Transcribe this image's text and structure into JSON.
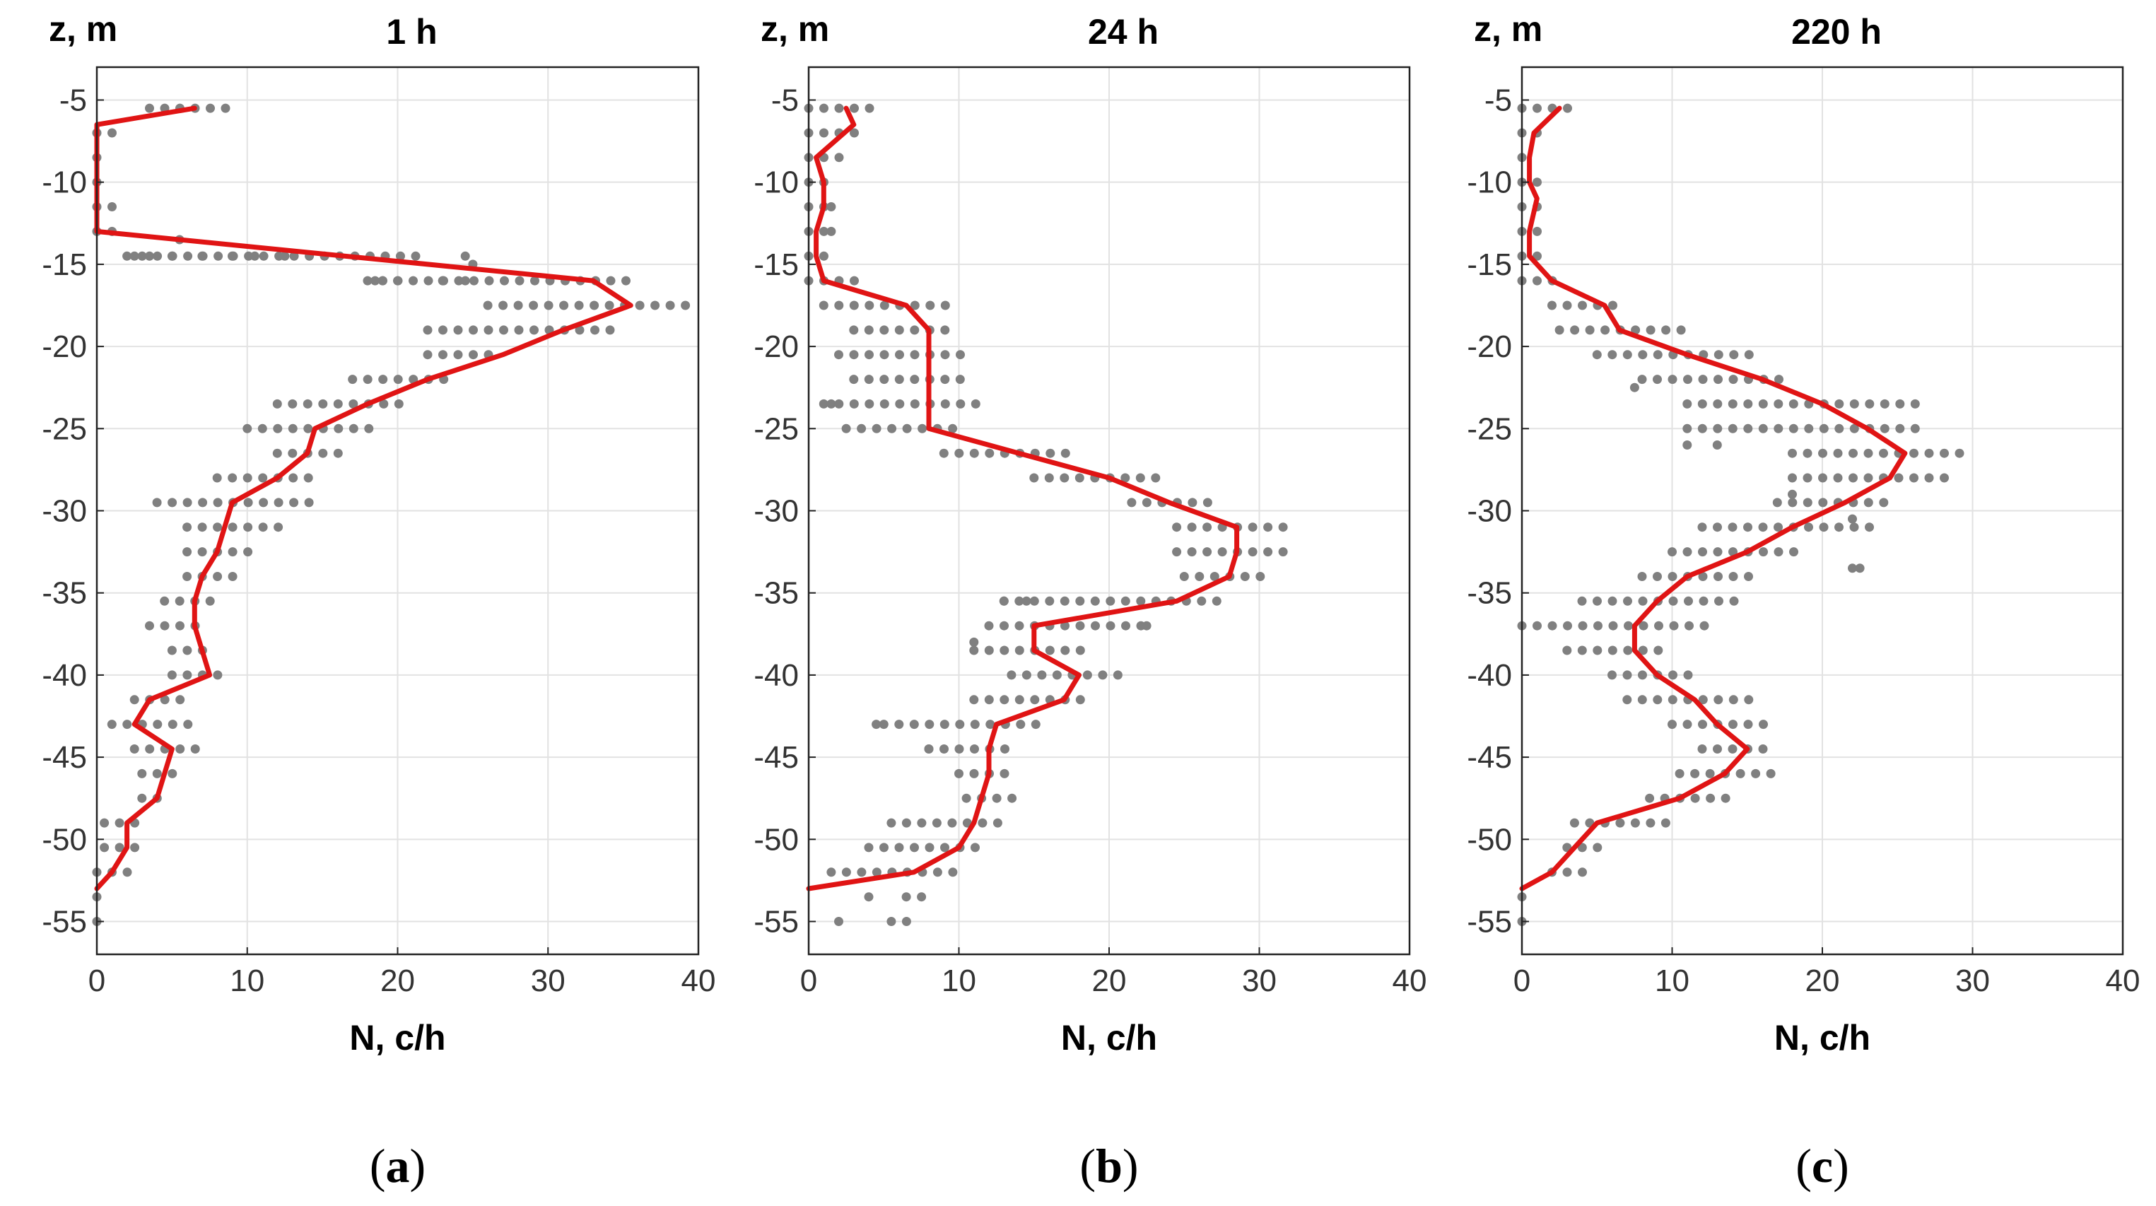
{
  "colors": {
    "points": "#808080",
    "line": "#e01414",
    "grid": "#e2e2e2",
    "axis": "#222222"
  },
  "chart_data": [
    {
      "type": "scatter",
      "panel_prefix": "(",
      "panel_letter": "a",
      "panel_suffix": ")",
      "title": "1 h",
      "ylabel": "z, m",
      "xlabel": "N, c/h",
      "xlim": [
        0,
        40
      ],
      "ylim": [
        -57,
        -3
      ],
      "xticks": [
        0,
        10,
        20,
        30,
        40
      ],
      "yticks": [
        -5,
        -10,
        -15,
        -20,
        -25,
        -30,
        -35,
        -40,
        -45,
        -50,
        -55
      ],
      "grid": true,
      "points": [
        [
          [
            -5.5,
            3.5,
            9.5
          ],
          [
            -7,
            0,
            2
          ],
          [
            -8.5,
            0,
            0.5
          ],
          [
            -10,
            0,
            0.5
          ],
          [
            -11.5,
            0,
            1.5
          ],
          [
            -13,
            0,
            2
          ],
          [
            -14.5,
            2,
            22
          ],
          [
            -16,
            18,
            36
          ],
          [
            -17.5,
            26,
            40
          ],
          [
            -19,
            22,
            35
          ],
          [
            -20.5,
            22,
            27
          ],
          [
            -22,
            17,
            24
          ],
          [
            -23.5,
            12,
            21
          ],
          [
            -25,
            10,
            19
          ],
          [
            -26.5,
            12,
            17
          ],
          [
            -28,
            8,
            15
          ],
          [
            -29.5,
            4,
            15
          ],
          [
            -31,
            6,
            12.5
          ],
          [
            -32.5,
            6,
            11
          ],
          [
            -34,
            6,
            10
          ],
          [
            -35.5,
            4.5,
            8
          ],
          [
            -37,
            3.5,
            7
          ],
          [
            -38.5,
            5,
            8
          ],
          [
            -40,
            5,
            9
          ],
          [
            -41.5,
            2.5,
            6
          ],
          [
            -43,
            1,
            7
          ],
          [
            -44.5,
            2.5,
            7
          ],
          [
            -46,
            3,
            6
          ],
          [
            -47.5,
            3,
            5
          ],
          [
            -49,
            0.5,
            3
          ],
          [
            -50.5,
            0.5,
            3
          ],
          [
            -52,
            0,
            2.5
          ],
          [
            -53.5,
            0,
            0.3
          ],
          [
            -55,
            0,
            0.3
          ]
        ],
        [
          [
            -13.5,
            5.5
          ],
          [
            -16,
            19
          ],
          [
            -16,
            23
          ],
          [
            -15,
            25
          ],
          [
            -14.5,
            2.5
          ],
          [
            -14.5,
            3.5
          ],
          [
            -14.5,
            5
          ],
          [
            -14.5,
            7
          ],
          [
            -14.5,
            9
          ],
          [
            -14.5,
            10.5
          ],
          [
            -14.5,
            12.5
          ],
          [
            -16,
            18.5
          ],
          [
            -16,
            20
          ],
          [
            -16,
            23
          ],
          [
            -16,
            24.5
          ],
          [
            -14.5,
            24.5
          ]
        ]
      ],
      "line": [
        [
          -5.5,
          6.5
        ],
        [
          -6.5,
          0
        ],
        [
          -11.5,
          0
        ],
        [
          -13,
          0
        ],
        [
          -16,
          33
        ],
        [
          -17.5,
          35.5
        ],
        [
          -19,
          31
        ],
        [
          -20.5,
          27
        ],
        [
          -22,
          22
        ],
        [
          -23.5,
          18
        ],
        [
          -25,
          14.5
        ],
        [
          -26.5,
          14
        ],
        [
          -28,
          12
        ],
        [
          -29.5,
          9
        ],
        [
          -31,
          8.5
        ],
        [
          -32.5,
          8
        ],
        [
          -34,
          7
        ],
        [
          -35.5,
          6.5
        ],
        [
          -37,
          6.5
        ],
        [
          -38.5,
          7
        ],
        [
          -40,
          7.5
        ],
        [
          -41.5,
          3.5
        ],
        [
          -43,
          2.5
        ],
        [
          -44.5,
          5
        ],
        [
          -46,
          4.5
        ],
        [
          -47.5,
          4
        ],
        [
          -49,
          2
        ],
        [
          -50.5,
          2
        ],
        [
          -52,
          1
        ],
        [
          -53,
          0
        ]
      ]
    },
    {
      "type": "scatter",
      "panel_prefix": "(",
      "panel_letter": "b",
      "panel_suffix": ")",
      "title": "24 h",
      "ylabel": "z, m",
      "xlabel": "N, c/h",
      "xlim": [
        0,
        40
      ],
      "ylim": [
        -57,
        -3
      ],
      "xticks": [
        0,
        10,
        20,
        30,
        40
      ],
      "yticks": [
        -5,
        -10,
        -15,
        -20,
        -25,
        -30,
        -35,
        -40,
        -45,
        -50,
        -55
      ],
      "grid": true,
      "points": [
        [
          [
            -5.5,
            0,
            5
          ],
          [
            -7,
            0,
            3.5
          ],
          [
            -8.5,
            0,
            2.5
          ],
          [
            -10,
            0,
            2
          ],
          [
            -11.5,
            0,
            1.5
          ],
          [
            -13,
            0,
            1.5
          ],
          [
            -14.5,
            0,
            2
          ],
          [
            -16,
            0,
            4
          ],
          [
            -17.5,
            1,
            9.5
          ],
          [
            -19,
            3,
            10
          ],
          [
            -20.5,
            2,
            10.5
          ],
          [
            -22,
            3,
            11
          ],
          [
            -23.5,
            1,
            11.5
          ],
          [
            -25,
            2.5,
            10.5
          ],
          [
            -26.5,
            9,
            18
          ],
          [
            -28,
            15,
            24
          ],
          [
            -29.5,
            21.5,
            27
          ],
          [
            -31,
            24.5,
            32
          ],
          [
            -32.5,
            24.5,
            32
          ],
          [
            -34,
            25,
            31
          ],
          [
            -35.5,
            13,
            28
          ],
          [
            -37,
            12,
            23
          ],
          [
            -38.5,
            11,
            18.5
          ],
          [
            -40,
            13.5,
            21
          ],
          [
            -41.5,
            11,
            18.5
          ],
          [
            -43,
            5,
            16
          ],
          [
            -44.5,
            8,
            14
          ],
          [
            -46,
            10,
            14
          ],
          [
            -47.5,
            10.5,
            14
          ],
          [
            -49,
            5.5,
            13
          ],
          [
            -50.5,
            4,
            12
          ],
          [
            -52,
            1.5,
            10.5
          ],
          [
            -53.5,
            6.5,
            8
          ],
          [
            -55,
            5.5,
            7
          ]
        ],
        [
          [
            -11.5,
            1.5
          ],
          [
            -13,
            1.5
          ],
          [
            -23.5,
            1.5
          ],
          [
            -35.5,
            13
          ],
          [
            -38,
            11
          ],
          [
            -35.5,
            14.5
          ],
          [
            -37,
            22.5
          ],
          [
            -43,
            4.5
          ],
          [
            -44.5,
            8
          ],
          [
            -53.5,
            4
          ],
          [
            -55,
            2
          ]
        ]
      ],
      "line": [
        [
          -5.5,
          2.5
        ],
        [
          -6.5,
          3
        ],
        [
          -8.5,
          0.5
        ],
        [
          -10,
          1
        ],
        [
          -11.5,
          1
        ],
        [
          -13,
          0.5
        ],
        [
          -14.5,
          0.5
        ],
        [
          -16,
          1
        ],
        [
          -17.5,
          6.5
        ],
        [
          -19,
          8
        ],
        [
          -20.5,
          8
        ],
        [
          -22,
          8
        ],
        [
          -23.5,
          8
        ],
        [
          -25,
          8
        ],
        [
          -26.5,
          14
        ],
        [
          -28,
          20
        ],
        [
          -29.5,
          24
        ],
        [
          -31,
          28.5
        ],
        [
          -32.5,
          28.5
        ],
        [
          -34,
          28
        ],
        [
          -35.5,
          24.5
        ],
        [
          -37,
          15
        ],
        [
          -38.5,
          15
        ],
        [
          -40,
          18
        ],
        [
          -41.5,
          17
        ],
        [
          -43,
          12.5
        ],
        [
          -44.5,
          12
        ],
        [
          -46,
          12
        ],
        [
          -47.5,
          11.5
        ],
        [
          -49,
          11
        ],
        [
          -50.5,
          10
        ],
        [
          -52,
          7
        ],
        [
          -53,
          0
        ]
      ]
    },
    {
      "type": "scatter",
      "panel_prefix": "(",
      "panel_letter": "c",
      "panel_suffix": ")",
      "title": "220 h",
      "ylabel": "z, m",
      "xlabel": "N, c/h",
      "xlim": [
        0,
        40
      ],
      "ylim": [
        -57,
        -3
      ],
      "xticks": [
        0,
        10,
        20,
        30,
        40
      ],
      "yticks": [
        -5,
        -10,
        -15,
        -20,
        -25,
        -30,
        -35,
        -40,
        -45,
        -50,
        -55
      ],
      "grid": true,
      "points": [
        [
          [
            -5.5,
            0,
            4
          ],
          [
            -7,
            0,
            2
          ],
          [
            -8.5,
            0,
            0.5
          ],
          [
            -10,
            0,
            1.5
          ],
          [
            -11.5,
            0,
            2
          ],
          [
            -13,
            0,
            1.5
          ],
          [
            -14.5,
            0,
            1.5
          ],
          [
            -16,
            0,
            2.5
          ],
          [
            -17.5,
            2,
            7
          ],
          [
            -19,
            2.5,
            11
          ],
          [
            -20.5,
            5,
            15.5
          ],
          [
            -22,
            8,
            18
          ],
          [
            -23.5,
            11,
            27
          ],
          [
            -25,
            11,
            27
          ],
          [
            -26.5,
            18,
            30
          ],
          [
            -28,
            18,
            29
          ],
          [
            -29.5,
            17,
            25
          ],
          [
            -31,
            12,
            24
          ],
          [
            -32.5,
            10,
            19
          ],
          [
            -34,
            8,
            16
          ],
          [
            -35.5,
            4,
            15
          ],
          [
            -37,
            0,
            13
          ],
          [
            -38.5,
            3,
            10
          ],
          [
            -40,
            6,
            12
          ],
          [
            -41.5,
            7,
            16
          ],
          [
            -43,
            10,
            17
          ],
          [
            -44.5,
            12,
            17
          ],
          [
            -46,
            10.5,
            17
          ],
          [
            -47.5,
            8.5,
            14
          ],
          [
            -49,
            3.5,
            10
          ],
          [
            -50.5,
            3,
            6
          ],
          [
            -52,
            2,
            4.5
          ],
          [
            -53.5,
            0,
            0.3
          ],
          [
            -55,
            0,
            0.3
          ]
        ],
        [
          [
            -22.5,
            7.5
          ],
          [
            -26,
            11
          ],
          [
            -26,
            13
          ],
          [
            -29,
            18
          ],
          [
            -30.5,
            22
          ],
          [
            -33.5,
            22
          ],
          [
            -33.5,
            22.5
          ]
        ]
      ],
      "line": [
        [
          -5.5,
          2.5
        ],
        [
          -7,
          0.8
        ],
        [
          -8.5,
          0.5
        ],
        [
          -10,
          0.5
        ],
        [
          -11,
          1
        ],
        [
          -13,
          0.5
        ],
        [
          -14.5,
          0.5
        ],
        [
          -16,
          2
        ],
        [
          -17.5,
          5.5
        ],
        [
          -19,
          6.5
        ],
        [
          -20.5,
          11
        ],
        [
          -22,
          16
        ],
        [
          -23.5,
          20
        ],
        [
          -25,
          23
        ],
        [
          -26.5,
          25.5
        ],
        [
          -28,
          24.5
        ],
        [
          -29.5,
          21.5
        ],
        [
          -31,
          18
        ],
        [
          -32.5,
          15
        ],
        [
          -34,
          11
        ],
        [
          -35.5,
          9
        ],
        [
          -37,
          7.5
        ],
        [
          -38.5,
          7.5
        ],
        [
          -40,
          9
        ],
        [
          -41.5,
          11.5
        ],
        [
          -43,
          13
        ],
        [
          -44.5,
          15
        ],
        [
          -46,
          13.5
        ],
        [
          -47.5,
          10.5
        ],
        [
          -49,
          5
        ],
        [
          -50.5,
          3.5
        ],
        [
          -52,
          2
        ],
        [
          -53,
          0
        ]
      ]
    }
  ]
}
